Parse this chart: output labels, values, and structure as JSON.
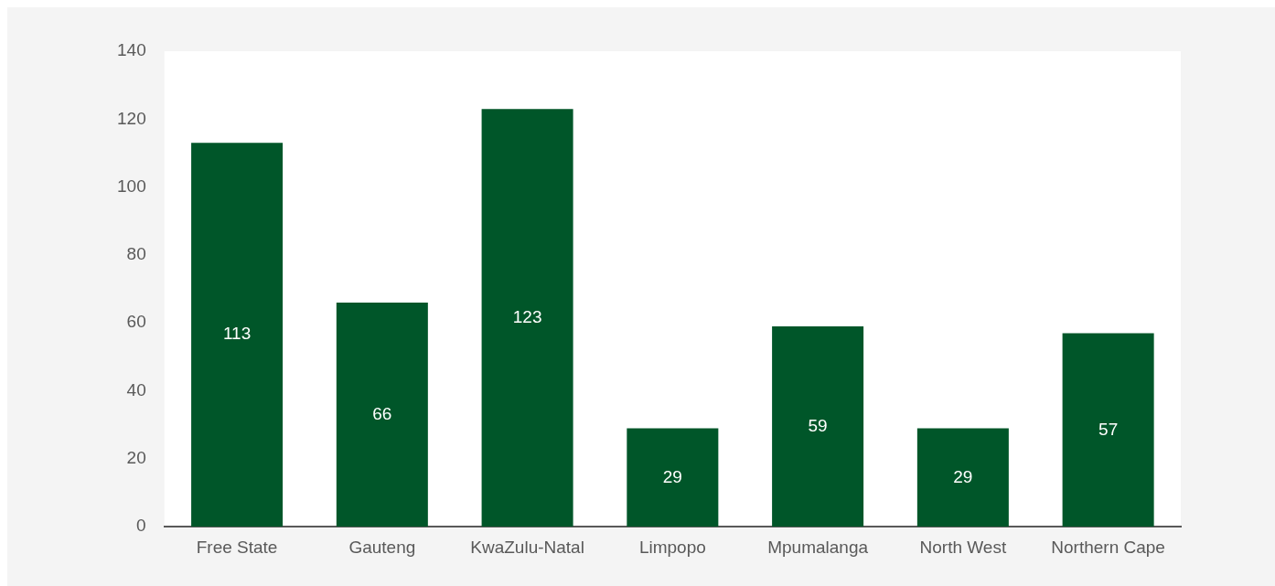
{
  "chart_data": {
    "type": "bar",
    "categories": [
      "Free State",
      "Gauteng",
      "KwaZulu-Natal",
      "Limpopo",
      "Mpumalanga",
      "North West",
      "Northern Cape"
    ],
    "values": [
      113,
      66,
      123,
      29,
      59,
      29,
      57
    ],
    "color": "#005629",
    "ylim": [
      0,
      140
    ],
    "yticks": [
      0,
      20,
      40,
      60,
      80,
      100,
      120,
      140
    ],
    "grid": false,
    "legend": false,
    "data_labels": true
  }
}
